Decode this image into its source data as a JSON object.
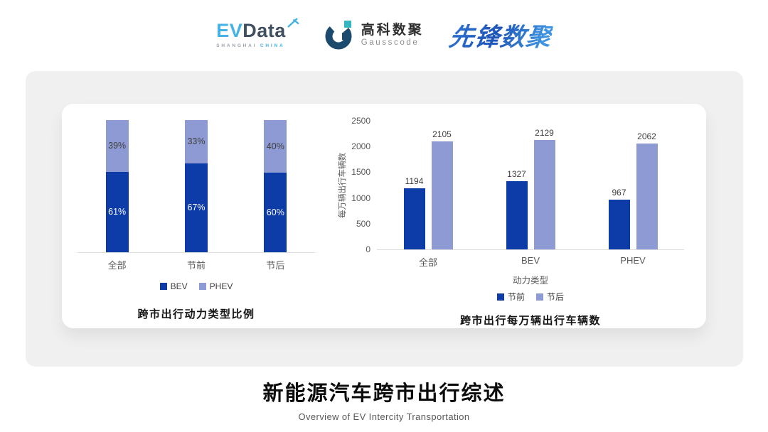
{
  "header": {
    "evdata": {
      "ev": "EV",
      "data": "Data",
      "sub_shanghai": "SHANGHAI",
      "sub_china": "CHINA",
      "blue": "#45b2e5",
      "dark": "#3f4f60"
    },
    "gausscode": {
      "cn": "高科数聚",
      "en": "Gausscode",
      "navy": "#1b4a6d",
      "teal": "#35b5bf"
    },
    "pioneer": {
      "text": "先锋数聚",
      "color_start": "#2a6ccc",
      "color_end": "#3f93e0"
    }
  },
  "chart_data": [
    {
      "type": "bar",
      "variant": "stacked-100-percent",
      "title": "跨市出行动力类型比例",
      "categories": [
        "全部",
        "节前",
        "节后"
      ],
      "series": [
        {
          "name": "BEV",
          "color": "#0d3ba8",
          "values": [
            61,
            67,
            60
          ],
          "labels": [
            "61%",
            "67%",
            "60%"
          ],
          "label_color": "#ffffff"
        },
        {
          "name": "PHEV",
          "color": "#8e9ad3",
          "values": [
            39,
            33,
            40
          ],
          "labels": [
            "39%",
            "33%",
            "40%"
          ],
          "label_color": "#3f3f3f"
        }
      ],
      "unit": "%",
      "ylim": [
        0,
        100
      ],
      "grid": false,
      "legend_position": "bottom"
    },
    {
      "type": "bar",
      "variant": "grouped",
      "title": "跨市出行每万辆出行车辆数",
      "categories": [
        "全部",
        "BEV",
        "PHEV"
      ],
      "xlabel": "动力类型",
      "ylabel": "每万辆出行车辆数",
      "ylim": [
        0,
        2500
      ],
      "yticks": [
        0,
        500,
        1000,
        1500,
        2000,
        2500
      ],
      "series": [
        {
          "name": "节前",
          "color": "#0d3ba8",
          "values": [
            1194,
            1327,
            967
          ]
        },
        {
          "name": "节后",
          "color": "#8e9ad3",
          "values": [
            2105,
            2129,
            2062
          ]
        }
      ],
      "grid": false,
      "legend_position": "bottom"
    }
  ],
  "footer": {
    "title": "新能源汽车跨市出行综述",
    "subtitle": "Overview of EV Intercity Transportation"
  }
}
